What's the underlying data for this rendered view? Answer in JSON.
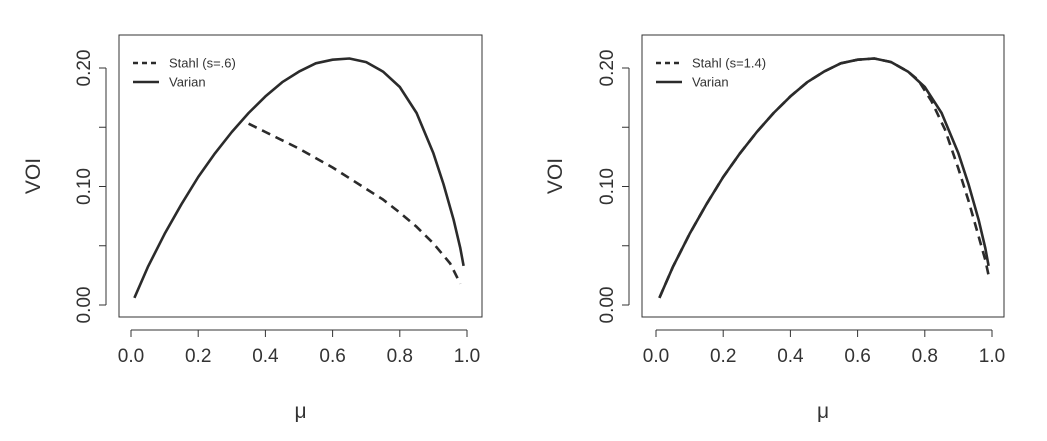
{
  "chart_data": [
    {
      "type": "line",
      "xlabel": "μ",
      "ylabel": "VOI",
      "xlim": [
        0.0,
        1.0
      ],
      "ylim": [
        0.0,
        0.21
      ],
      "xticks": [
        "0.0",
        "0.2",
        "0.4",
        "0.6",
        "0.8",
        "1.0"
      ],
      "yticks": [
        "0.00",
        "0.10",
        "0.20"
      ],
      "legend_position": "top-left",
      "series": [
        {
          "name": "Stahl (s=.6)",
          "style": "dashed",
          "x": [
            0.35,
            0.4,
            0.45,
            0.5,
            0.55,
            0.6,
            0.65,
            0.7,
            0.75,
            0.8,
            0.85,
            0.9,
            0.95,
            0.98
          ],
          "y": [
            0.153,
            0.146,
            0.139,
            0.132,
            0.124,
            0.116,
            0.107,
            0.098,
            0.089,
            0.078,
            0.066,
            0.052,
            0.035,
            0.018
          ]
        },
        {
          "name": "Varian",
          "style": "solid",
          "x": [
            0.01,
            0.05,
            0.1,
            0.15,
            0.2,
            0.25,
            0.3,
            0.35,
            0.4,
            0.45,
            0.5,
            0.55,
            0.6,
            0.65,
            0.7,
            0.75,
            0.8,
            0.85,
            0.9,
            0.93,
            0.96,
            0.98,
            0.99
          ],
          "y": [
            0.006,
            0.032,
            0.06,
            0.085,
            0.108,
            0.128,
            0.146,
            0.162,
            0.176,
            0.188,
            0.197,
            0.204,
            0.207,
            0.208,
            0.205,
            0.197,
            0.184,
            0.162,
            0.128,
            0.102,
            0.072,
            0.048,
            0.033
          ]
        }
      ]
    },
    {
      "type": "line",
      "xlabel": "μ",
      "ylabel": "VOI",
      "xlim": [
        0.0,
        1.0
      ],
      "ylim": [
        0.0,
        0.21
      ],
      "xticks": [
        "0.0",
        "0.2",
        "0.4",
        "0.6",
        "0.8",
        "1.0"
      ],
      "yticks": [
        "0.00",
        "0.10",
        "0.20"
      ],
      "legend_position": "top-left",
      "series": [
        {
          "name": "Stahl (s=1.4)",
          "style": "dashed",
          "x": [
            0.01,
            0.05,
            0.1,
            0.15,
            0.2,
            0.25,
            0.3,
            0.35,
            0.4,
            0.45,
            0.5,
            0.55,
            0.6,
            0.65,
            0.7,
            0.75,
            0.78,
            0.82,
            0.86,
            0.9,
            0.93,
            0.96,
            0.98,
            0.99
          ],
          "y": [
            0.006,
            0.032,
            0.06,
            0.085,
            0.108,
            0.128,
            0.146,
            0.162,
            0.176,
            0.188,
            0.197,
            0.204,
            0.207,
            0.208,
            0.205,
            0.197,
            0.19,
            0.172,
            0.148,
            0.115,
            0.088,
            0.058,
            0.038,
            0.025
          ]
        },
        {
          "name": "Varian",
          "style": "solid",
          "x": [
            0.01,
            0.05,
            0.1,
            0.15,
            0.2,
            0.25,
            0.3,
            0.35,
            0.4,
            0.45,
            0.5,
            0.55,
            0.6,
            0.65,
            0.7,
            0.75,
            0.8,
            0.85,
            0.9,
            0.93,
            0.96,
            0.98,
            0.99
          ],
          "y": [
            0.006,
            0.032,
            0.06,
            0.085,
            0.108,
            0.128,
            0.146,
            0.162,
            0.176,
            0.188,
            0.197,
            0.204,
            0.207,
            0.208,
            0.205,
            0.197,
            0.184,
            0.162,
            0.128,
            0.102,
            0.072,
            0.048,
            0.033
          ]
        }
      ]
    }
  ]
}
